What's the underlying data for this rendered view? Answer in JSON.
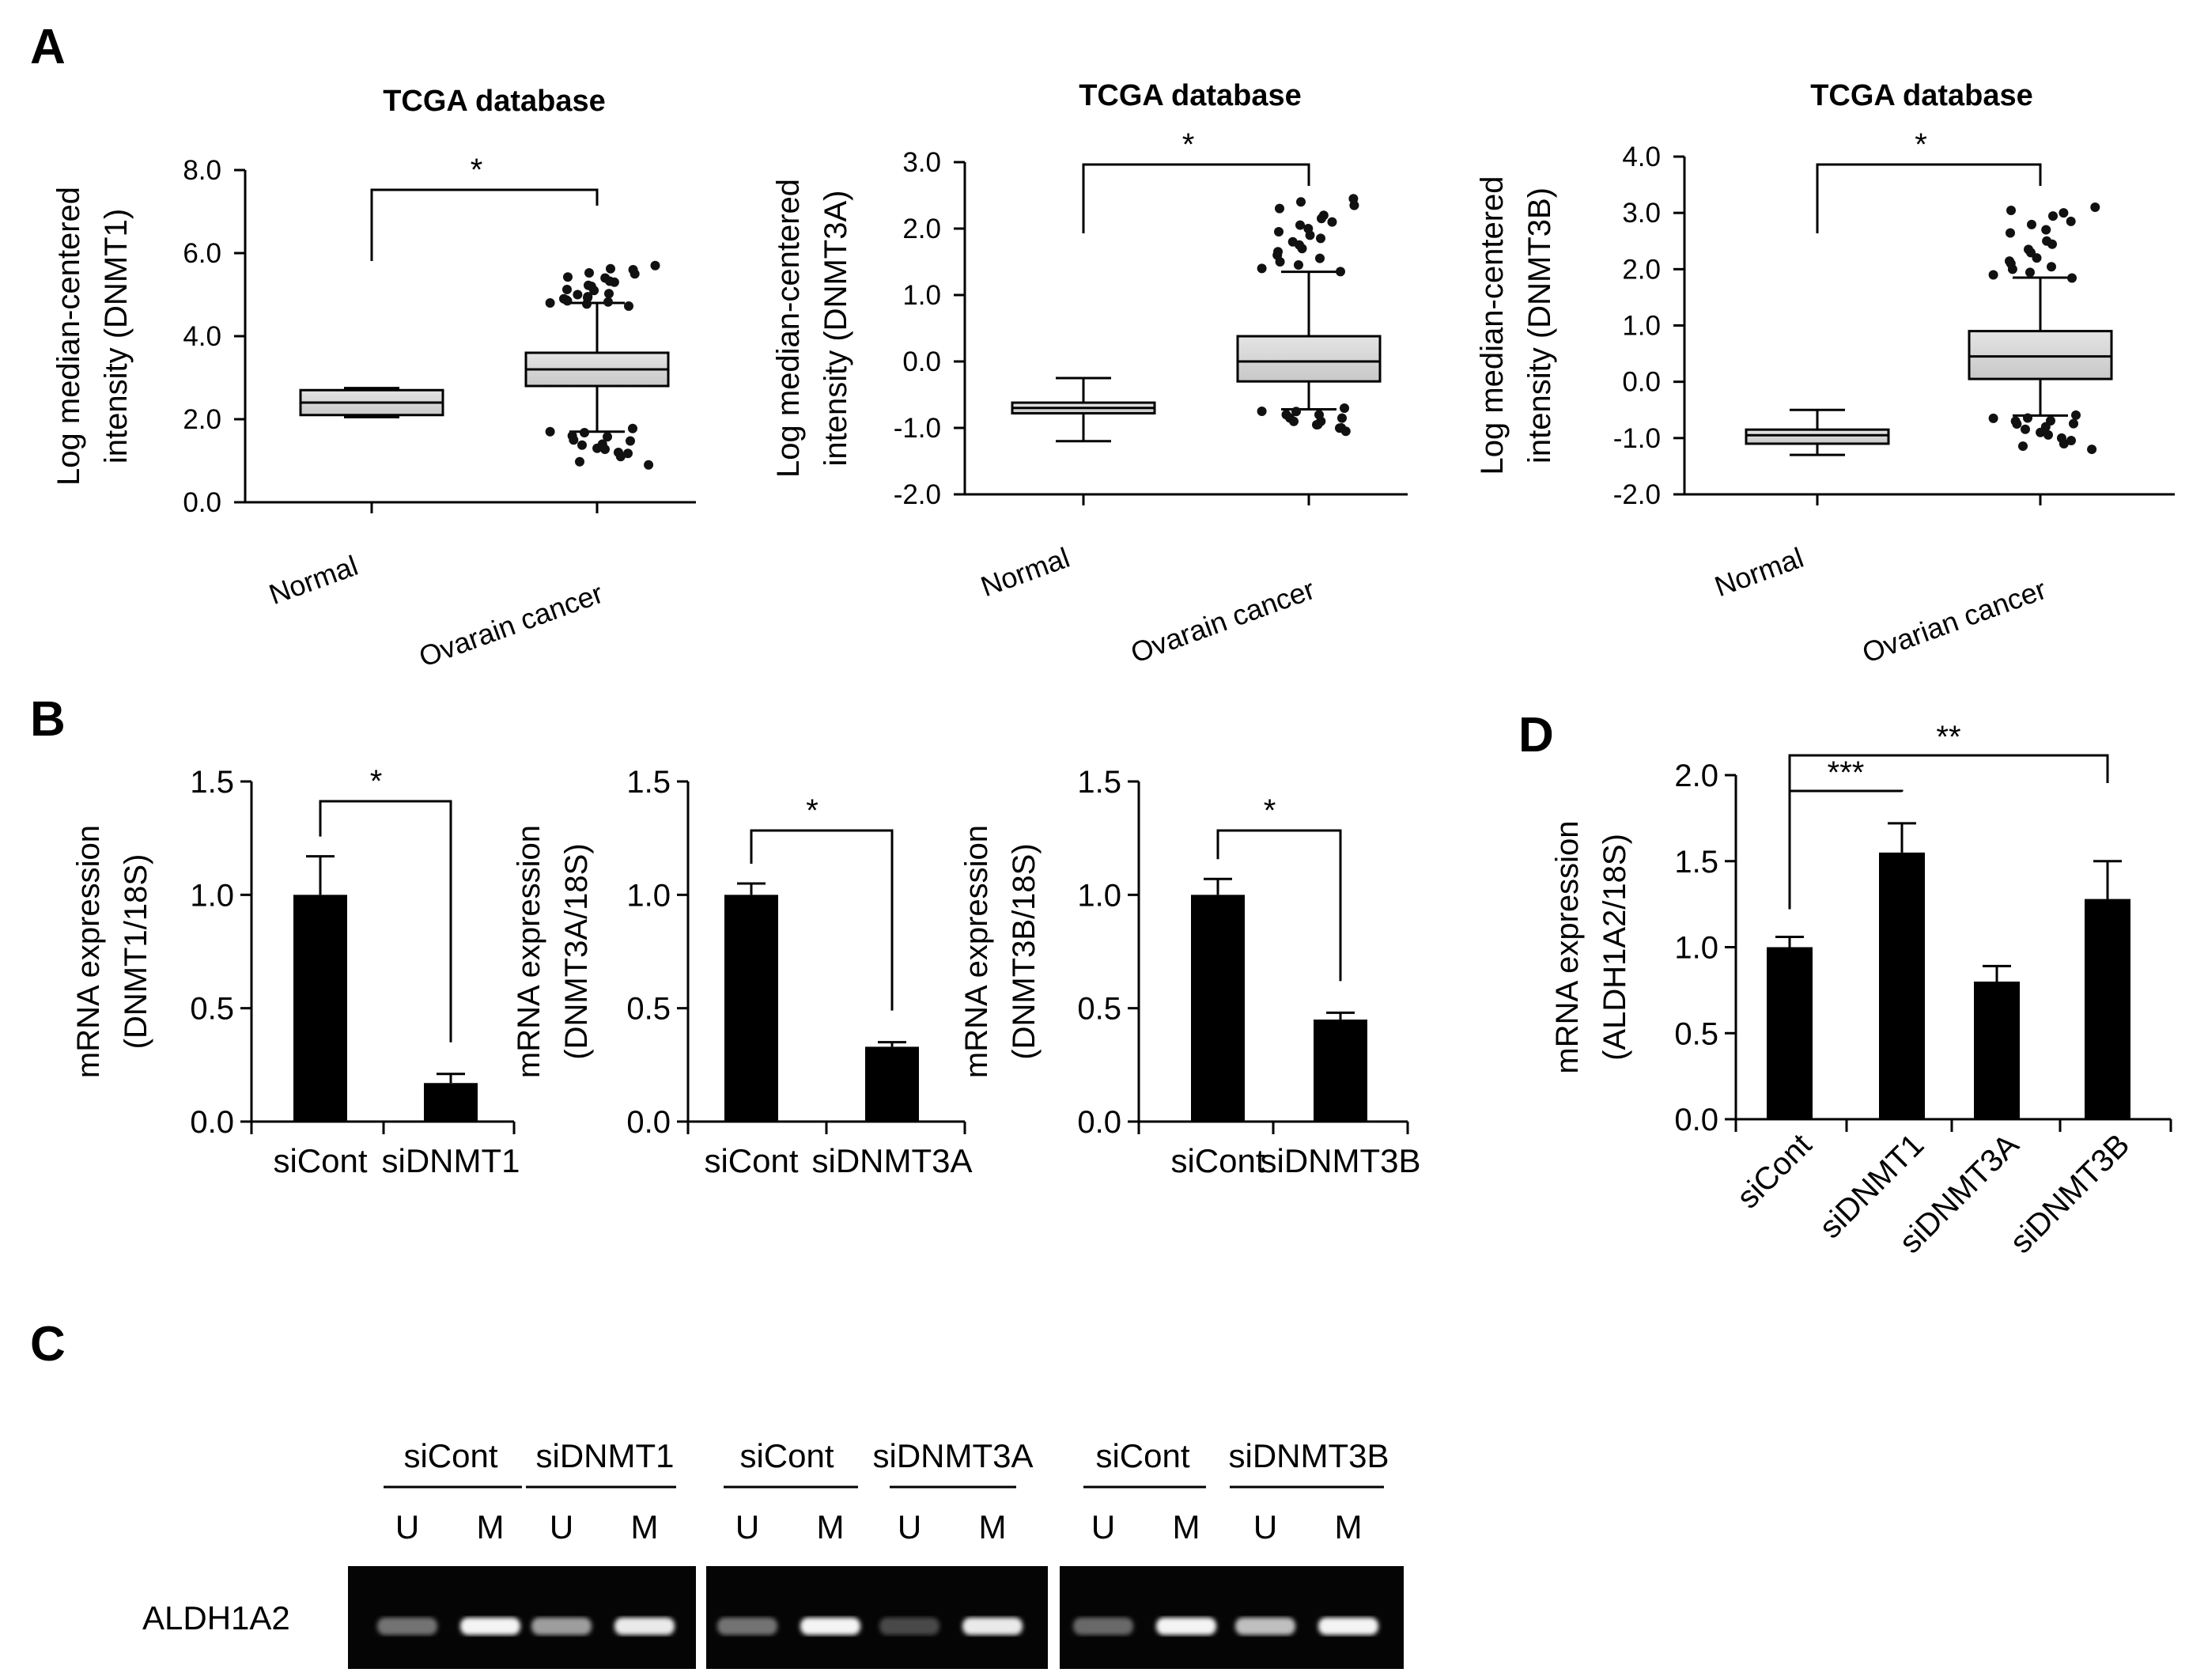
{
  "panels": {
    "A": "A",
    "B": "B",
    "C": "C",
    "D": "D"
  },
  "chart_data": [
    {
      "type": "box",
      "panel": "A",
      "title": "TCGA database",
      "ylabel_lines": [
        "Log median-centered",
        "intensity (DNMT1)"
      ],
      "ylim": [
        0,
        8
      ],
      "yticks": [
        0,
        2,
        4,
        6,
        8
      ],
      "ytick_labels": [
        "0.0",
        "2.0",
        "4.0",
        "6.0",
        "8.0"
      ],
      "categories": [
        "Normal",
        "Ovarain cancer"
      ],
      "boxes": [
        {
          "min": 2.05,
          "q1": 2.1,
          "median": 2.4,
          "q3": 2.7,
          "max": 2.75
        },
        {
          "min": 1.7,
          "q1": 2.8,
          "median": 3.2,
          "q3": 3.6,
          "max": 4.8,
          "outliers_high": [
            4.8,
            4.85,
            4.9,
            4.95,
            5.0,
            5.1,
            5.2,
            5.3,
            5.4,
            5.5,
            5.6,
            5.7
          ],
          "outliers_low": [
            1.7,
            1.6,
            1.5,
            1.4,
            1.3,
            1.2,
            1.1,
            0.9
          ]
        }
      ],
      "significance": "*"
    },
    {
      "type": "box",
      "panel": "A",
      "title": "TCGA database",
      "ylabel_lines": [
        "Log median-centered",
        "intensity (DNMT3A)"
      ],
      "ylim": [
        -2,
        3
      ],
      "yticks": [
        -2,
        -1,
        0,
        1,
        2,
        3
      ],
      "ytick_labels": [
        "-2.0",
        "-1.0",
        "0.0",
        "1.0",
        "2.0",
        "3.0"
      ],
      "categories": [
        "Normal",
        "Ovarain cancer"
      ],
      "boxes": [
        {
          "min": -1.2,
          "q1": -0.78,
          "median": -0.7,
          "q3": -0.62,
          "max": -0.25
        },
        {
          "min": -0.72,
          "q1": -0.3,
          "median": 0.0,
          "q3": 0.38,
          "max": 1.35,
          "outliers_high": [
            1.4,
            1.5,
            1.6,
            1.7,
            1.8,
            1.9,
            2.0,
            2.1,
            2.2,
            2.35,
            2.45
          ],
          "outliers_low": [
            -0.75,
            -0.8,
            -0.85,
            -0.9,
            -0.95,
            -1.0,
            -1.05
          ]
        }
      ],
      "significance": "*"
    },
    {
      "type": "box",
      "panel": "A",
      "title": "TCGA database",
      "ylabel_lines": [
        "Log median-centered",
        "intensity (DNMT3B)"
      ],
      "ylim": [
        -2,
        4
      ],
      "yticks": [
        -2,
        -1,
        0,
        1,
        2,
        3,
        4
      ],
      "ytick_labels": [
        "-2.0",
        "-1.0",
        "0.0",
        "1.0",
        "2.0",
        "3.0",
        "4.0"
      ],
      "categories": [
        "Normal",
        "Ovarian cancer"
      ],
      "boxes": [
        {
          "min": -1.3,
          "q1": -1.1,
          "median": -0.95,
          "q3": -0.85,
          "max": -0.5
        },
        {
          "min": -0.6,
          "q1": 0.05,
          "median": 0.45,
          "q3": 0.9,
          "max": 1.85,
          "outliers_high": [
            1.9,
            2.0,
            2.1,
            2.2,
            2.35,
            2.5,
            2.7,
            2.85,
            3.0,
            3.1
          ],
          "outliers_low": [
            -0.65,
            -0.7,
            -0.75,
            -0.8,
            -0.9,
            -1.0,
            -1.1,
            -1.2
          ]
        }
      ],
      "significance": "*"
    },
    {
      "type": "bar",
      "panel": "B",
      "ylabel_lines": [
        "mRNA expression",
        "(DNMT1/18S)"
      ],
      "ylim": [
        0,
        1.5
      ],
      "yticks": [
        0,
        0.5,
        1.0,
        1.5
      ],
      "ytick_labels": [
        "0.0",
        "0.5",
        "1.0",
        "1.5"
      ],
      "categories": [
        "siCont",
        "siDNMT1"
      ],
      "values": [
        1.0,
        0.17
      ],
      "errors": [
        0.17,
        0.04
      ],
      "significance": "*"
    },
    {
      "type": "bar",
      "panel": "B",
      "ylabel_lines": [
        "mRNA expression",
        "(DNMT3A/18S)"
      ],
      "ylim": [
        0,
        1.5
      ],
      "yticks": [
        0,
        0.5,
        1.0,
        1.5
      ],
      "ytick_labels": [
        "0.0",
        "0.5",
        "1.0",
        "1.5"
      ],
      "categories": [
        "siCont",
        "siDNMT3A"
      ],
      "values": [
        1.0,
        0.33
      ],
      "errors": [
        0.05,
        0.02
      ],
      "significance": "*"
    },
    {
      "type": "bar",
      "panel": "B",
      "ylabel_lines": [
        "mRNA expression",
        "(DNMT3B/18S)"
      ],
      "ylim": [
        0,
        1.5
      ],
      "yticks": [
        0,
        0.5,
        1.0,
        1.5
      ],
      "ytick_labels": [
        "0.0",
        "0.5",
        "1.0",
        "1.5"
      ],
      "categories": [
        "siCont",
        "siDNMT3B"
      ],
      "values": [
        1.0,
        0.45
      ],
      "errors": [
        0.07,
        0.03
      ],
      "significance": "*"
    },
    {
      "type": "bar",
      "panel": "D",
      "ylabel_lines": [
        "mRNA expression",
        "(ALDH1A2/18S)"
      ],
      "ylim": [
        0,
        2.0
      ],
      "yticks": [
        0,
        0.5,
        1.0,
        1.5,
        2.0
      ],
      "ytick_labels": [
        "0.0",
        "0.5",
        "1.0",
        "1.5",
        "2.0"
      ],
      "categories": [
        "siCont",
        "siDNMT1",
        "siDNMT3A",
        "siDNMT3B"
      ],
      "values": [
        1.0,
        1.55,
        0.8,
        1.28
      ],
      "errors": [
        0.06,
        0.17,
        0.09,
        0.22
      ],
      "significance": [
        {
          "from": 0,
          "to": 1,
          "label": "***"
        },
        {
          "from": 0,
          "to": 3,
          "label": "**"
        }
      ]
    }
  ],
  "gel": {
    "row_label": "ALDH1A2",
    "groups": [
      {
        "label": "siCont",
        "lanes": [
          "U",
          "M"
        ],
        "band": [
          0.35,
          0.95
        ]
      },
      {
        "label": "siDNMT1",
        "lanes": [
          "U",
          "M"
        ],
        "band": [
          0.55,
          0.9
        ]
      },
      {
        "label": "siCont",
        "lanes": [
          "U",
          "M"
        ],
        "band": [
          0.35,
          0.95
        ]
      },
      {
        "label": "siDNMT3A",
        "lanes": [
          "U",
          "M"
        ],
        "band": [
          0.15,
          0.9
        ]
      },
      {
        "label": "siCont",
        "lanes": [
          "U",
          "M"
        ],
        "band": [
          0.3,
          0.95
        ]
      },
      {
        "label": "siDNMT3B",
        "lanes": [
          "U",
          "M"
        ],
        "band": [
          0.7,
          0.95
        ]
      }
    ]
  }
}
